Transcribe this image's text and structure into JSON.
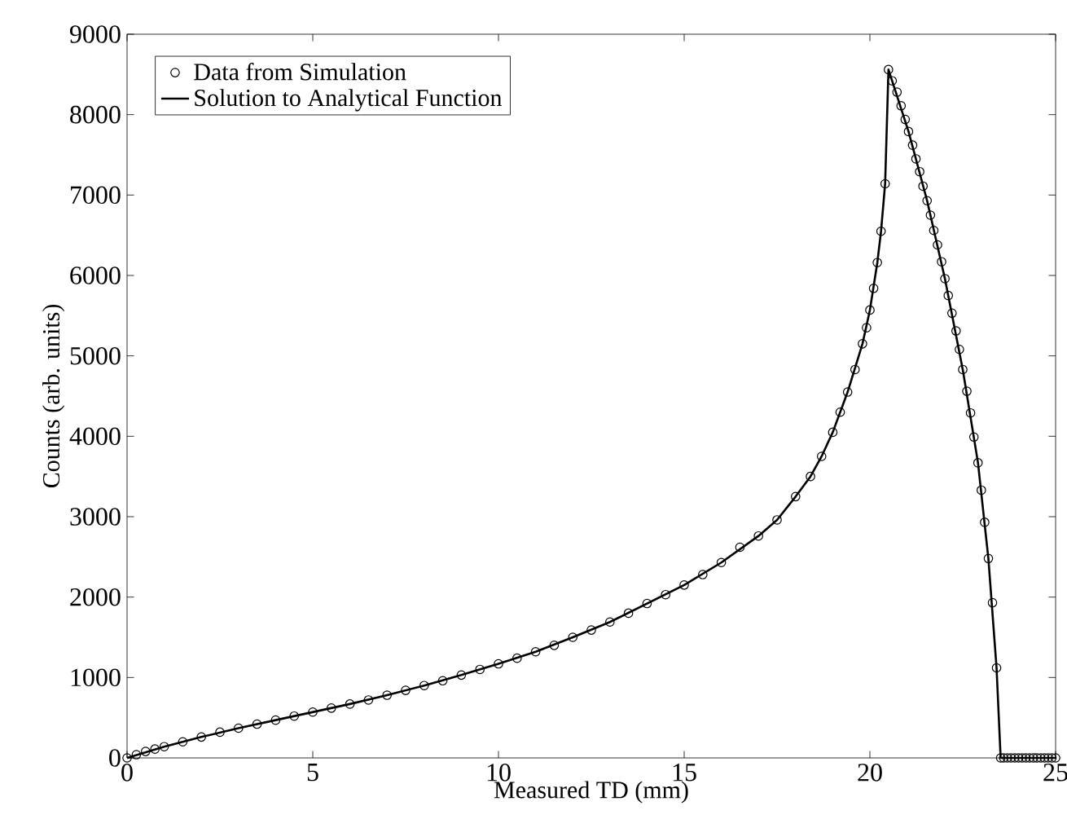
{
  "chart_data": {
    "type": "line",
    "xlabel": "Measured TD (mm)",
    "ylabel": "Counts (arb. units)",
    "xlim": [
      0,
      25
    ],
    "ylim": [
      0,
      9000
    ],
    "xticks": [
      0,
      5,
      10,
      15,
      20,
      25
    ],
    "yticks": [
      0,
      1000,
      2000,
      3000,
      4000,
      5000,
      6000,
      7000,
      8000,
      9000
    ],
    "grid": false,
    "legend": "top left",
    "series": [
      {
        "name": "Data from Simulation",
        "type": "scatter",
        "marker": "circle",
        "color": "#000000",
        "x": [
          0,
          0.25,
          0.5,
          0.75,
          1,
          1.5,
          2,
          2.5,
          3,
          3.5,
          4,
          4.5,
          5,
          5.5,
          6,
          6.5,
          7,
          7.5,
          8,
          8.5,
          9,
          9.5,
          10,
          10.5,
          11,
          11.5,
          12,
          12.5,
          13,
          13.5,
          14,
          14.5,
          15,
          15.5,
          16,
          16.5,
          17,
          17.5,
          18,
          18.4,
          18.7,
          19,
          19.2,
          19.4,
          19.6,
          19.8,
          19.91,
          20.0,
          20.1,
          20.2,
          20.3,
          20.41,
          20.5,
          20.6,
          20.73,
          20.84,
          20.95,
          21.04,
          21.15,
          21.24,
          21.34,
          21.43,
          21.54,
          21.63,
          21.72,
          21.82,
          21.93,
          22.02,
          22.11,
          22.21,
          22.32,
          22.41,
          22.5,
          22.61,
          22.71,
          22.8,
          22.91,
          23.0,
          23.09,
          23.19,
          23.3,
          23.41,
          23.52,
          23.6,
          23.7,
          23.8,
          23.9,
          24.0,
          24.1,
          24.2,
          24.3,
          24.4,
          24.5,
          24.6,
          24.7,
          24.8,
          24.9,
          25.0
        ],
        "values": [
          0,
          40,
          80,
          110,
          140,
          200,
          260,
          320,
          370,
          420,
          470,
          520,
          570,
          620,
          670,
          720,
          780,
          840,
          900,
          960,
          1030,
          1100,
          1170,
          1240,
          1320,
          1400,
          1500,
          1590,
          1690,
          1800,
          1920,
          2030,
          2150,
          2280,
          2430,
          2620,
          2760,
          2960,
          3250,
          3500,
          3750,
          4050,
          4300,
          4550,
          4830,
          5150,
          5350,
          5570,
          5840,
          6160,
          6550,
          7140,
          8560,
          8420,
          8280,
          8110,
          7940,
          7790,
          7620,
          7450,
          7290,
          7110,
          6930,
          6750,
          6560,
          6380,
          6170,
          5960,
          5750,
          5530,
          5310,
          5080,
          4830,
          4560,
          4290,
          3990,
          3670,
          3330,
          2930,
          2480,
          1930,
          1120,
          0,
          0,
          0,
          0,
          0,
          0,
          0,
          0,
          0,
          0,
          0,
          0,
          0,
          0,
          0,
          0
        ]
      },
      {
        "name": "Solution to Analytical Function",
        "marker": "none",
        "line_style": "solid",
        "color": "#000000",
        "x": [
          0,
          1,
          2,
          3,
          4,
          5,
          6,
          7,
          8,
          9,
          10,
          11,
          12,
          13,
          14,
          15,
          16,
          17,
          17.5,
          18,
          18.4,
          18.7,
          19,
          19.4,
          19.8,
          20.0,
          20.2,
          20.3,
          20.41,
          20.5,
          21.04,
          21.54,
          22.02,
          22.5,
          22.91,
          23.19,
          23.41,
          23.52,
          25.0
        ],
        "values": [
          0,
          140,
          260,
          370,
          470,
          570,
          670,
          780,
          900,
          1030,
          1170,
          1320,
          1500,
          1690,
          1920,
          2150,
          2430,
          2760,
          2960,
          3250,
          3500,
          3750,
          4050,
          4550,
          5150,
          5570,
          6160,
          6550,
          7140,
          8560,
          7790,
          6930,
          5960,
          4830,
          3670,
          2480,
          1120,
          0,
          0
        ]
      }
    ]
  }
}
